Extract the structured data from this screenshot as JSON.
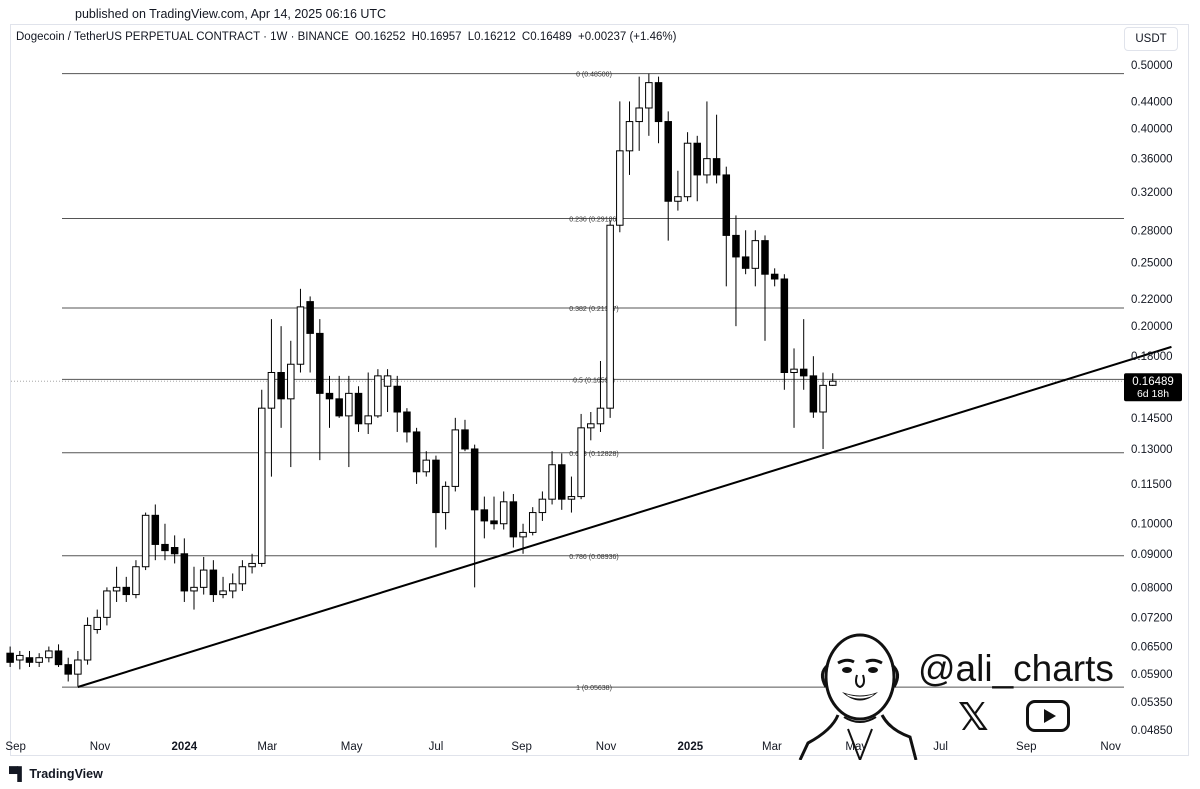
{
  "published": "published on TradingView.com, Apr 14, 2025 06:16 UTC",
  "header": {
    "symbol": "Dogecoin / TetherUS PERPETUAL CONTRACT · 1W · BINANCE",
    "open": "O0.16252",
    "high": "H0.16957",
    "low": "L0.16212",
    "close": "C0.16489",
    "change": "+0.00237 (+1.46%)"
  },
  "currency_button": "USDT",
  "price_badge": {
    "price": "0.16489",
    "countdown": "6d 18h"
  },
  "footer_logo": "TradingView",
  "watermark": {
    "handle": "@ali_charts",
    "icons": [
      "x-icon",
      "youtube-icon"
    ]
  },
  "colors": {
    "up_body": "#ffffff",
    "down_body": "#000000",
    "wick": "#000000",
    "fib": "#555555",
    "trendline": "#000000",
    "badge": "#000000"
  },
  "chart_data": {
    "type": "candlestick",
    "scale": "log",
    "ylim": [
      0.0485,
      0.5
    ],
    "y_ticks": [
      "0.50000",
      "0.44000",
      "0.40000",
      "0.36000",
      "0.32000",
      "0.28000",
      "0.25000",
      "0.22000",
      "0.20000",
      "0.18000",
      "0.14500",
      "0.13000",
      "0.11500",
      "0.10000",
      "0.09000",
      "0.08000",
      "0.07200",
      "0.06500",
      "0.05900",
      "0.05350",
      "0.04850"
    ],
    "x_ticks": [
      "Sep",
      "Nov",
      "2024",
      "Mar",
      "May",
      "Jul",
      "Sep",
      "Nov",
      "2025",
      "Mar",
      "May",
      "Jul",
      "Sep",
      "Nov"
    ],
    "fib_levels": [
      {
        "label": "0 (0.48500)",
        "value": 0.485
      },
      {
        "label": "0.236 (0.29186)",
        "value": 0.29186
      },
      {
        "label": "0.382 (0.21317)",
        "value": 0.21317
      },
      {
        "label": "0.5 (0.16597)",
        "value": 0.16597
      },
      {
        "label": "0.618 (0.12828)",
        "value": 0.12828
      },
      {
        "label": "0.786 (0.08936)",
        "value": 0.08936
      },
      {
        "label": "1 (0.05638)",
        "value": 0.05638
      }
    ],
    "trendline": {
      "from": {
        "date": "2023-10-16",
        "value": 0.0564
      },
      "to": {
        "date": "2025-12-15",
        "value": 0.186
      }
    },
    "candles": [
      {
        "date": "2023-08-28",
        "o": 0.0635,
        "h": 0.065,
        "l": 0.0605,
        "c": 0.0615
      },
      {
        "date": "2023-09-04",
        "o": 0.062,
        "h": 0.064,
        "l": 0.06,
        "c": 0.063
      },
      {
        "date": "2023-09-11",
        "o": 0.0625,
        "h": 0.064,
        "l": 0.0605,
        "c": 0.0615
      },
      {
        "date": "2023-09-18",
        "o": 0.0615,
        "h": 0.0635,
        "l": 0.0605,
        "c": 0.0625
      },
      {
        "date": "2023-09-25",
        "o": 0.0625,
        "h": 0.065,
        "l": 0.0615,
        "c": 0.064
      },
      {
        "date": "2023-10-02",
        "o": 0.064,
        "h": 0.0655,
        "l": 0.0605,
        "c": 0.061
      },
      {
        "date": "2023-10-09",
        "o": 0.061,
        "h": 0.0625,
        "l": 0.0575,
        "c": 0.059
      },
      {
        "date": "2023-10-16",
        "o": 0.059,
        "h": 0.064,
        "l": 0.0565,
        "c": 0.062
      },
      {
        "date": "2023-10-23",
        "o": 0.062,
        "h": 0.072,
        "l": 0.061,
        "c": 0.07
      },
      {
        "date": "2023-10-30",
        "o": 0.069,
        "h": 0.074,
        "l": 0.068,
        "c": 0.072
      },
      {
        "date": "2023-11-06",
        "o": 0.072,
        "h": 0.08,
        "l": 0.07,
        "c": 0.079
      },
      {
        "date": "2023-11-13",
        "o": 0.079,
        "h": 0.086,
        "l": 0.076,
        "c": 0.08
      },
      {
        "date": "2023-11-20",
        "o": 0.08,
        "h": 0.083,
        "l": 0.076,
        "c": 0.078
      },
      {
        "date": "2023-11-27",
        "o": 0.078,
        "h": 0.088,
        "l": 0.077,
        "c": 0.086
      },
      {
        "date": "2023-12-04",
        "o": 0.086,
        "h": 0.104,
        "l": 0.085,
        "c": 0.103
      },
      {
        "date": "2023-12-11",
        "o": 0.103,
        "h": 0.107,
        "l": 0.088,
        "c": 0.093
      },
      {
        "date": "2023-12-18",
        "o": 0.093,
        "h": 0.1,
        "l": 0.088,
        "c": 0.091
      },
      {
        "date": "2023-12-25",
        "o": 0.092,
        "h": 0.096,
        "l": 0.087,
        "c": 0.09
      },
      {
        "date": "2024-01-01",
        "o": 0.09,
        "h": 0.095,
        "l": 0.076,
        "c": 0.079
      },
      {
        "date": "2024-01-08",
        "o": 0.079,
        "h": 0.086,
        "l": 0.074,
        "c": 0.08
      },
      {
        "date": "2024-01-15",
        "o": 0.08,
        "h": 0.089,
        "l": 0.078,
        "c": 0.085
      },
      {
        "date": "2024-01-22",
        "o": 0.085,
        "h": 0.088,
        "l": 0.076,
        "c": 0.078
      },
      {
        "date": "2024-01-29",
        "o": 0.078,
        "h": 0.083,
        "l": 0.077,
        "c": 0.079
      },
      {
        "date": "2024-02-05",
        "o": 0.079,
        "h": 0.084,
        "l": 0.077,
        "c": 0.081
      },
      {
        "date": "2024-02-12",
        "o": 0.081,
        "h": 0.088,
        "l": 0.079,
        "c": 0.086
      },
      {
        "date": "2024-02-19",
        "o": 0.086,
        "h": 0.09,
        "l": 0.084,
        "c": 0.087
      },
      {
        "date": "2024-02-26",
        "o": 0.087,
        "h": 0.16,
        "l": 0.086,
        "c": 0.15
      },
      {
        "date": "2024-03-04",
        "o": 0.15,
        "h": 0.205,
        "l": 0.118,
        "c": 0.17
      },
      {
        "date": "2024-03-11",
        "o": 0.17,
        "h": 0.2,
        "l": 0.14,
        "c": 0.155
      },
      {
        "date": "2024-03-18",
        "o": 0.155,
        "h": 0.19,
        "l": 0.122,
        "c": 0.175
      },
      {
        "date": "2024-03-25",
        "o": 0.175,
        "h": 0.228,
        "l": 0.17,
        "c": 0.214
      },
      {
        "date": "2024-04-01",
        "o": 0.218,
        "h": 0.222,
        "l": 0.17,
        "c": 0.195
      },
      {
        "date": "2024-04-08",
        "o": 0.195,
        "h": 0.205,
        "l": 0.125,
        "c": 0.158
      },
      {
        "date": "2024-04-15",
        "o": 0.158,
        "h": 0.168,
        "l": 0.14,
        "c": 0.155
      },
      {
        "date": "2024-04-22",
        "o": 0.155,
        "h": 0.168,
        "l": 0.145,
        "c": 0.146
      },
      {
        "date": "2024-04-29",
        "o": 0.146,
        "h": 0.168,
        "l": 0.122,
        "c": 0.158
      },
      {
        "date": "2024-05-06",
        "o": 0.158,
        "h": 0.162,
        "l": 0.138,
        "c": 0.142
      },
      {
        "date": "2024-05-13",
        "o": 0.142,
        "h": 0.17,
        "l": 0.137,
        "c": 0.146
      },
      {
        "date": "2024-05-20",
        "o": 0.146,
        "h": 0.172,
        "l": 0.145,
        "c": 0.168
      },
      {
        "date": "2024-05-27",
        "o": 0.162,
        "h": 0.172,
        "l": 0.148,
        "c": 0.168
      },
      {
        "date": "2024-06-03",
        "o": 0.162,
        "h": 0.168,
        "l": 0.138,
        "c": 0.148
      },
      {
        "date": "2024-06-10",
        "o": 0.148,
        "h": 0.15,
        "l": 0.133,
        "c": 0.138
      },
      {
        "date": "2024-06-17",
        "o": 0.138,
        "h": 0.14,
        "l": 0.115,
        "c": 0.12
      },
      {
        "date": "2024-06-24",
        "o": 0.12,
        "h": 0.129,
        "l": 0.118,
        "c": 0.125
      },
      {
        "date": "2024-07-01",
        "o": 0.125,
        "h": 0.127,
        "l": 0.092,
        "c": 0.104
      },
      {
        "date": "2024-07-08",
        "o": 0.104,
        "h": 0.116,
        "l": 0.098,
        "c": 0.114
      },
      {
        "date": "2024-07-15",
        "o": 0.114,
        "h": 0.145,
        "l": 0.112,
        "c": 0.139
      },
      {
        "date": "2024-07-22",
        "o": 0.139,
        "h": 0.144,
        "l": 0.129,
        "c": 0.13
      },
      {
        "date": "2024-07-29",
        "o": 0.13,
        "h": 0.132,
        "l": 0.08,
        "c": 0.105
      },
      {
        "date": "2024-08-05",
        "o": 0.105,
        "h": 0.11,
        "l": 0.095,
        "c": 0.101
      },
      {
        "date": "2024-08-12",
        "o": 0.101,
        "h": 0.11,
        "l": 0.098,
        "c": 0.1
      },
      {
        "date": "2024-08-19",
        "o": 0.1,
        "h": 0.112,
        "l": 0.098,
        "c": 0.108
      },
      {
        "date": "2024-08-26",
        "o": 0.108,
        "h": 0.111,
        "l": 0.092,
        "c": 0.0955
      },
      {
        "date": "2024-09-02",
        "o": 0.0955,
        "h": 0.1,
        "l": 0.09,
        "c": 0.097
      },
      {
        "date": "2024-09-09",
        "o": 0.097,
        "h": 0.106,
        "l": 0.096,
        "c": 0.104
      },
      {
        "date": "2024-09-16",
        "o": 0.104,
        "h": 0.112,
        "l": 0.101,
        "c": 0.109
      },
      {
        "date": "2024-09-23",
        "o": 0.109,
        "h": 0.129,
        "l": 0.107,
        "c": 0.123
      },
      {
        "date": "2024-09-30",
        "o": 0.123,
        "h": 0.128,
        "l": 0.105,
        "c": 0.109
      },
      {
        "date": "2024-10-07",
        "o": 0.109,
        "h": 0.118,
        "l": 0.104,
        "c": 0.11
      },
      {
        "date": "2024-10-14",
        "o": 0.11,
        "h": 0.147,
        "l": 0.109,
        "c": 0.14
      },
      {
        "date": "2024-10-21",
        "o": 0.14,
        "h": 0.148,
        "l": 0.134,
        "c": 0.142
      },
      {
        "date": "2024-10-28",
        "o": 0.142,
        "h": 0.177,
        "l": 0.138,
        "c": 0.15
      },
      {
        "date": "2024-11-04",
        "o": 0.15,
        "h": 0.29,
        "l": 0.145,
        "c": 0.285
      },
      {
        "date": "2024-11-11",
        "o": 0.285,
        "h": 0.44,
        "l": 0.278,
        "c": 0.37
      },
      {
        "date": "2024-11-18",
        "o": 0.37,
        "h": 0.44,
        "l": 0.34,
        "c": 0.41
      },
      {
        "date": "2024-11-25",
        "o": 0.41,
        "h": 0.48,
        "l": 0.37,
        "c": 0.43
      },
      {
        "date": "2024-12-02",
        "o": 0.43,
        "h": 0.485,
        "l": 0.39,
        "c": 0.47
      },
      {
        "date": "2024-12-09",
        "o": 0.47,
        "h": 0.48,
        "l": 0.38,
        "c": 0.41
      },
      {
        "date": "2024-12-16",
        "o": 0.41,
        "h": 0.425,
        "l": 0.27,
        "c": 0.31
      },
      {
        "date": "2024-12-23",
        "o": 0.31,
        "h": 0.345,
        "l": 0.3,
        "c": 0.315
      },
      {
        "date": "2024-12-30",
        "o": 0.315,
        "h": 0.395,
        "l": 0.31,
        "c": 0.38
      },
      {
        "date": "2025-01-06",
        "o": 0.38,
        "h": 0.39,
        "l": 0.31,
        "c": 0.34
      },
      {
        "date": "2025-01-13",
        "o": 0.34,
        "h": 0.44,
        "l": 0.33,
        "c": 0.36
      },
      {
        "date": "2025-01-20",
        "o": 0.36,
        "h": 0.42,
        "l": 0.33,
        "c": 0.34
      },
      {
        "date": "2025-01-27",
        "o": 0.34,
        "h": 0.35,
        "l": 0.23,
        "c": 0.275
      },
      {
        "date": "2025-02-03",
        "o": 0.275,
        "h": 0.295,
        "l": 0.2,
        "c": 0.255
      },
      {
        "date": "2025-02-10",
        "o": 0.255,
        "h": 0.28,
        "l": 0.24,
        "c": 0.245
      },
      {
        "date": "2025-02-17",
        "o": 0.245,
        "h": 0.28,
        "l": 0.23,
        "c": 0.27
      },
      {
        "date": "2025-02-24",
        "o": 0.27,
        "h": 0.275,
        "l": 0.19,
        "c": 0.24
      },
      {
        "date": "2025-03-03",
        "o": 0.24,
        "h": 0.245,
        "l": 0.23,
        "c": 0.236
      },
      {
        "date": "2025-03-10",
        "o": 0.236,
        "h": 0.24,
        "l": 0.16,
        "c": 0.17
      },
      {
        "date": "2025-03-17",
        "o": 0.17,
        "h": 0.185,
        "l": 0.14,
        "c": 0.172
      },
      {
        "date": "2025-03-24",
        "o": 0.172,
        "h": 0.205,
        "l": 0.16,
        "c": 0.168
      },
      {
        "date": "2025-03-31",
        "o": 0.168,
        "h": 0.18,
        "l": 0.145,
        "c": 0.148
      },
      {
        "date": "2025-04-07",
        "o": 0.148,
        "h": 0.17,
        "l": 0.13,
        "c": 0.1625
      },
      {
        "date": "2025-04-14",
        "o": 0.16252,
        "h": 0.16957,
        "l": 0.16212,
        "c": 0.16489
      }
    ]
  }
}
